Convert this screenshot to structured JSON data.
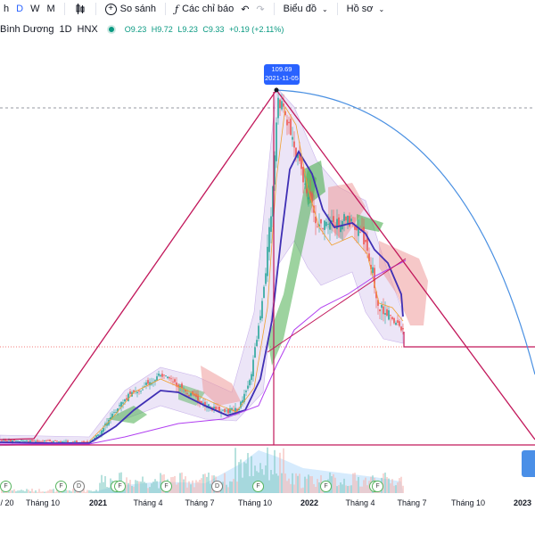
{
  "toolbar": {
    "interval_h": "h",
    "interval_d": "D",
    "interval_w": "W",
    "interval_m": "M",
    "compare_label": "So sánh",
    "indicators_label": "Các chỉ báo",
    "chart_label": "Biểu đồ",
    "profile_label": "Hồ sơ"
  },
  "legend": {
    "symbol": "Bình Dương",
    "interval": "1D",
    "exchange": "HNX",
    "open": "O9.23",
    "high": "H9.72",
    "low": "L9.23",
    "close": "C9.33",
    "change": "+0.19 (+2.11%)"
  },
  "price_tip": {
    "price": "109.69",
    "date": "2021-11-05"
  },
  "x_axis": {
    "t0": "/ 20",
    "t1": "Tháng 10",
    "t2": "2021",
    "t3": "Tháng 4",
    "t4": "Tháng 7",
    "t5": "Tháng 10",
    "t6": "2022",
    "t7": "Tháng 4",
    "t8": "Tháng 7",
    "t9": "Tháng 10",
    "t10": "2023"
  },
  "events": [
    "F",
    "F",
    "D",
    "F",
    "F",
    "F",
    "D",
    "F",
    "F",
    "F",
    "F"
  ],
  "colors": {
    "up": "#26a69a",
    "down": "#ef5350",
    "ma_blue": "#3f2fb4",
    "ma_purple": "#b13ff0",
    "cloud_green": "#4caf50",
    "cloud_red": "#ef9a9a",
    "drawing": "#c2185b",
    "arc": "#4a90e2"
  },
  "chart_data": {
    "type": "candlestick",
    "x": [
      "2020-08",
      "2020-10",
      "2021-01",
      "2021-03",
      "2021-04",
      "2021-05",
      "2021-07",
      "2021-08",
      "2021-10",
      "2021-11",
      "2021-12",
      "2022-01",
      "2022-02",
      "2022-03",
      "2022-04",
      "2022-05",
      "2022-06"
    ],
    "close": [
      4.2,
      4.4,
      4.6,
      8.5,
      13.5,
      14.0,
      11.0,
      10.0,
      22.0,
      100.0,
      82.0,
      70.0,
      60.0,
      62.0,
      55.0,
      30.0,
      20.0
    ],
    "annotations": [
      {
        "label": "peak",
        "price": 109.69,
        "date": "2021-11-05"
      }
    ]
  }
}
